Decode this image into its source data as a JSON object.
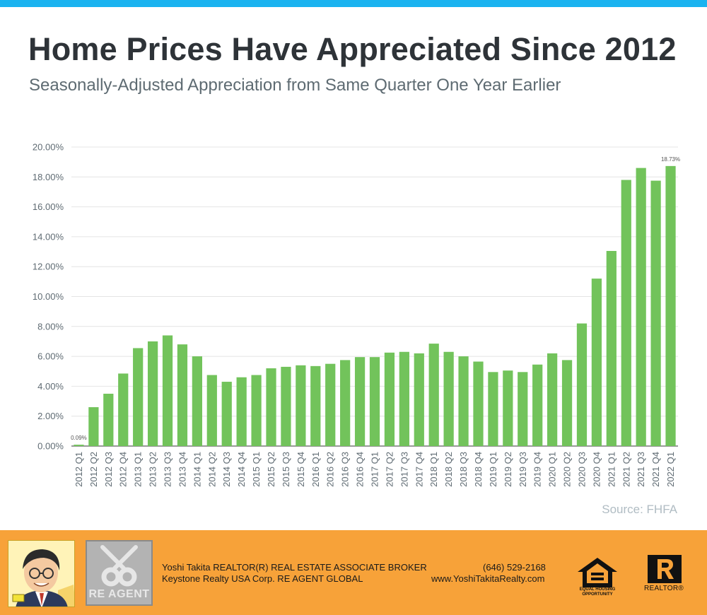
{
  "header": {
    "title": "Home Prices Have Appreciated Since 2012",
    "subtitle": "Seasonally-Adjusted Appreciation from Same Quarter One Year Earlier"
  },
  "colors": {
    "top_bar": "#1ab3f0",
    "bar": "#72c35b",
    "footer": "#f7a239",
    "grid": "#e4e4e4",
    "axis_text": "#5f6b73"
  },
  "chart_data": {
    "type": "bar",
    "categories": [
      "2012 Q1",
      "2012 Q2",
      "2012 Q3",
      "2012 Q4",
      "2013 Q1",
      "2013 Q2",
      "2013 Q3",
      "2013 Q4",
      "2014 Q1",
      "2014 Q2",
      "2014 Q3",
      "2014 Q4",
      "2015 Q1",
      "2015 Q2",
      "2015 Q3",
      "2015 Q4",
      "2016 Q1",
      "2016 Q2",
      "2016 Q3",
      "2016 Q4",
      "2017 Q1",
      "2017 Q2",
      "2017 Q3",
      "2017 Q4",
      "2018 Q1",
      "2018 Q2",
      "2018 Q3",
      "2018 Q4",
      "2019 Q1",
      "2019 Q2",
      "2019 Q3",
      "2019 Q4",
      "2020 Q1",
      "2020 Q2",
      "2020 Q3",
      "2020 Q4",
      "2021 Q1",
      "2021 Q2",
      "2021 Q3",
      "2021 Q4",
      "2022 Q1"
    ],
    "values": [
      0.09,
      2.6,
      3.5,
      4.85,
      6.55,
      7.0,
      7.4,
      6.8,
      6.0,
      4.75,
      4.3,
      4.6,
      4.75,
      5.2,
      5.3,
      5.4,
      5.35,
      5.5,
      5.75,
      5.95,
      5.95,
      6.25,
      6.3,
      6.2,
      6.85,
      6.3,
      6.0,
      5.65,
      4.95,
      5.05,
      4.95,
      5.45,
      6.2,
      5.75,
      8.2,
      11.2,
      13.05,
      17.8,
      18.6,
      17.75,
      18.73
    ],
    "data_labels": [
      {
        "index": 0,
        "text": "0.09%"
      },
      {
        "index": 40,
        "text": "18.73%"
      }
    ],
    "yticks": [
      "0.00%",
      "2.00%",
      "4.00%",
      "6.00%",
      "8.00%",
      "10.00%",
      "12.00%",
      "14.00%",
      "16.00%",
      "18.00%",
      "20.00%"
    ],
    "ylim": [
      0,
      20
    ],
    "grid": true,
    "legend": "none",
    "source": "Source: FHFA"
  },
  "footer": {
    "name_line": "Yoshi Takita REALTOR(R) REAL ESTATE ASSOCIATE BROKER",
    "company_line": "Keystone Realty USA Corp.  RE AGENT GLOBAL",
    "phone": "(646) 529-2168",
    "website": "www.YoshiTakitaRealty.com",
    "re_agent_logo": "RE AGENT",
    "eho_logo": "EQUAL HOUSING OPPORTUNITY",
    "realtor_logo": "REALTOR®",
    "icons": [
      "agent-portrait-icon",
      "re-agent-keys-logo-icon",
      "equal-housing-opportunity-icon",
      "realtor-r-logo-icon"
    ]
  }
}
